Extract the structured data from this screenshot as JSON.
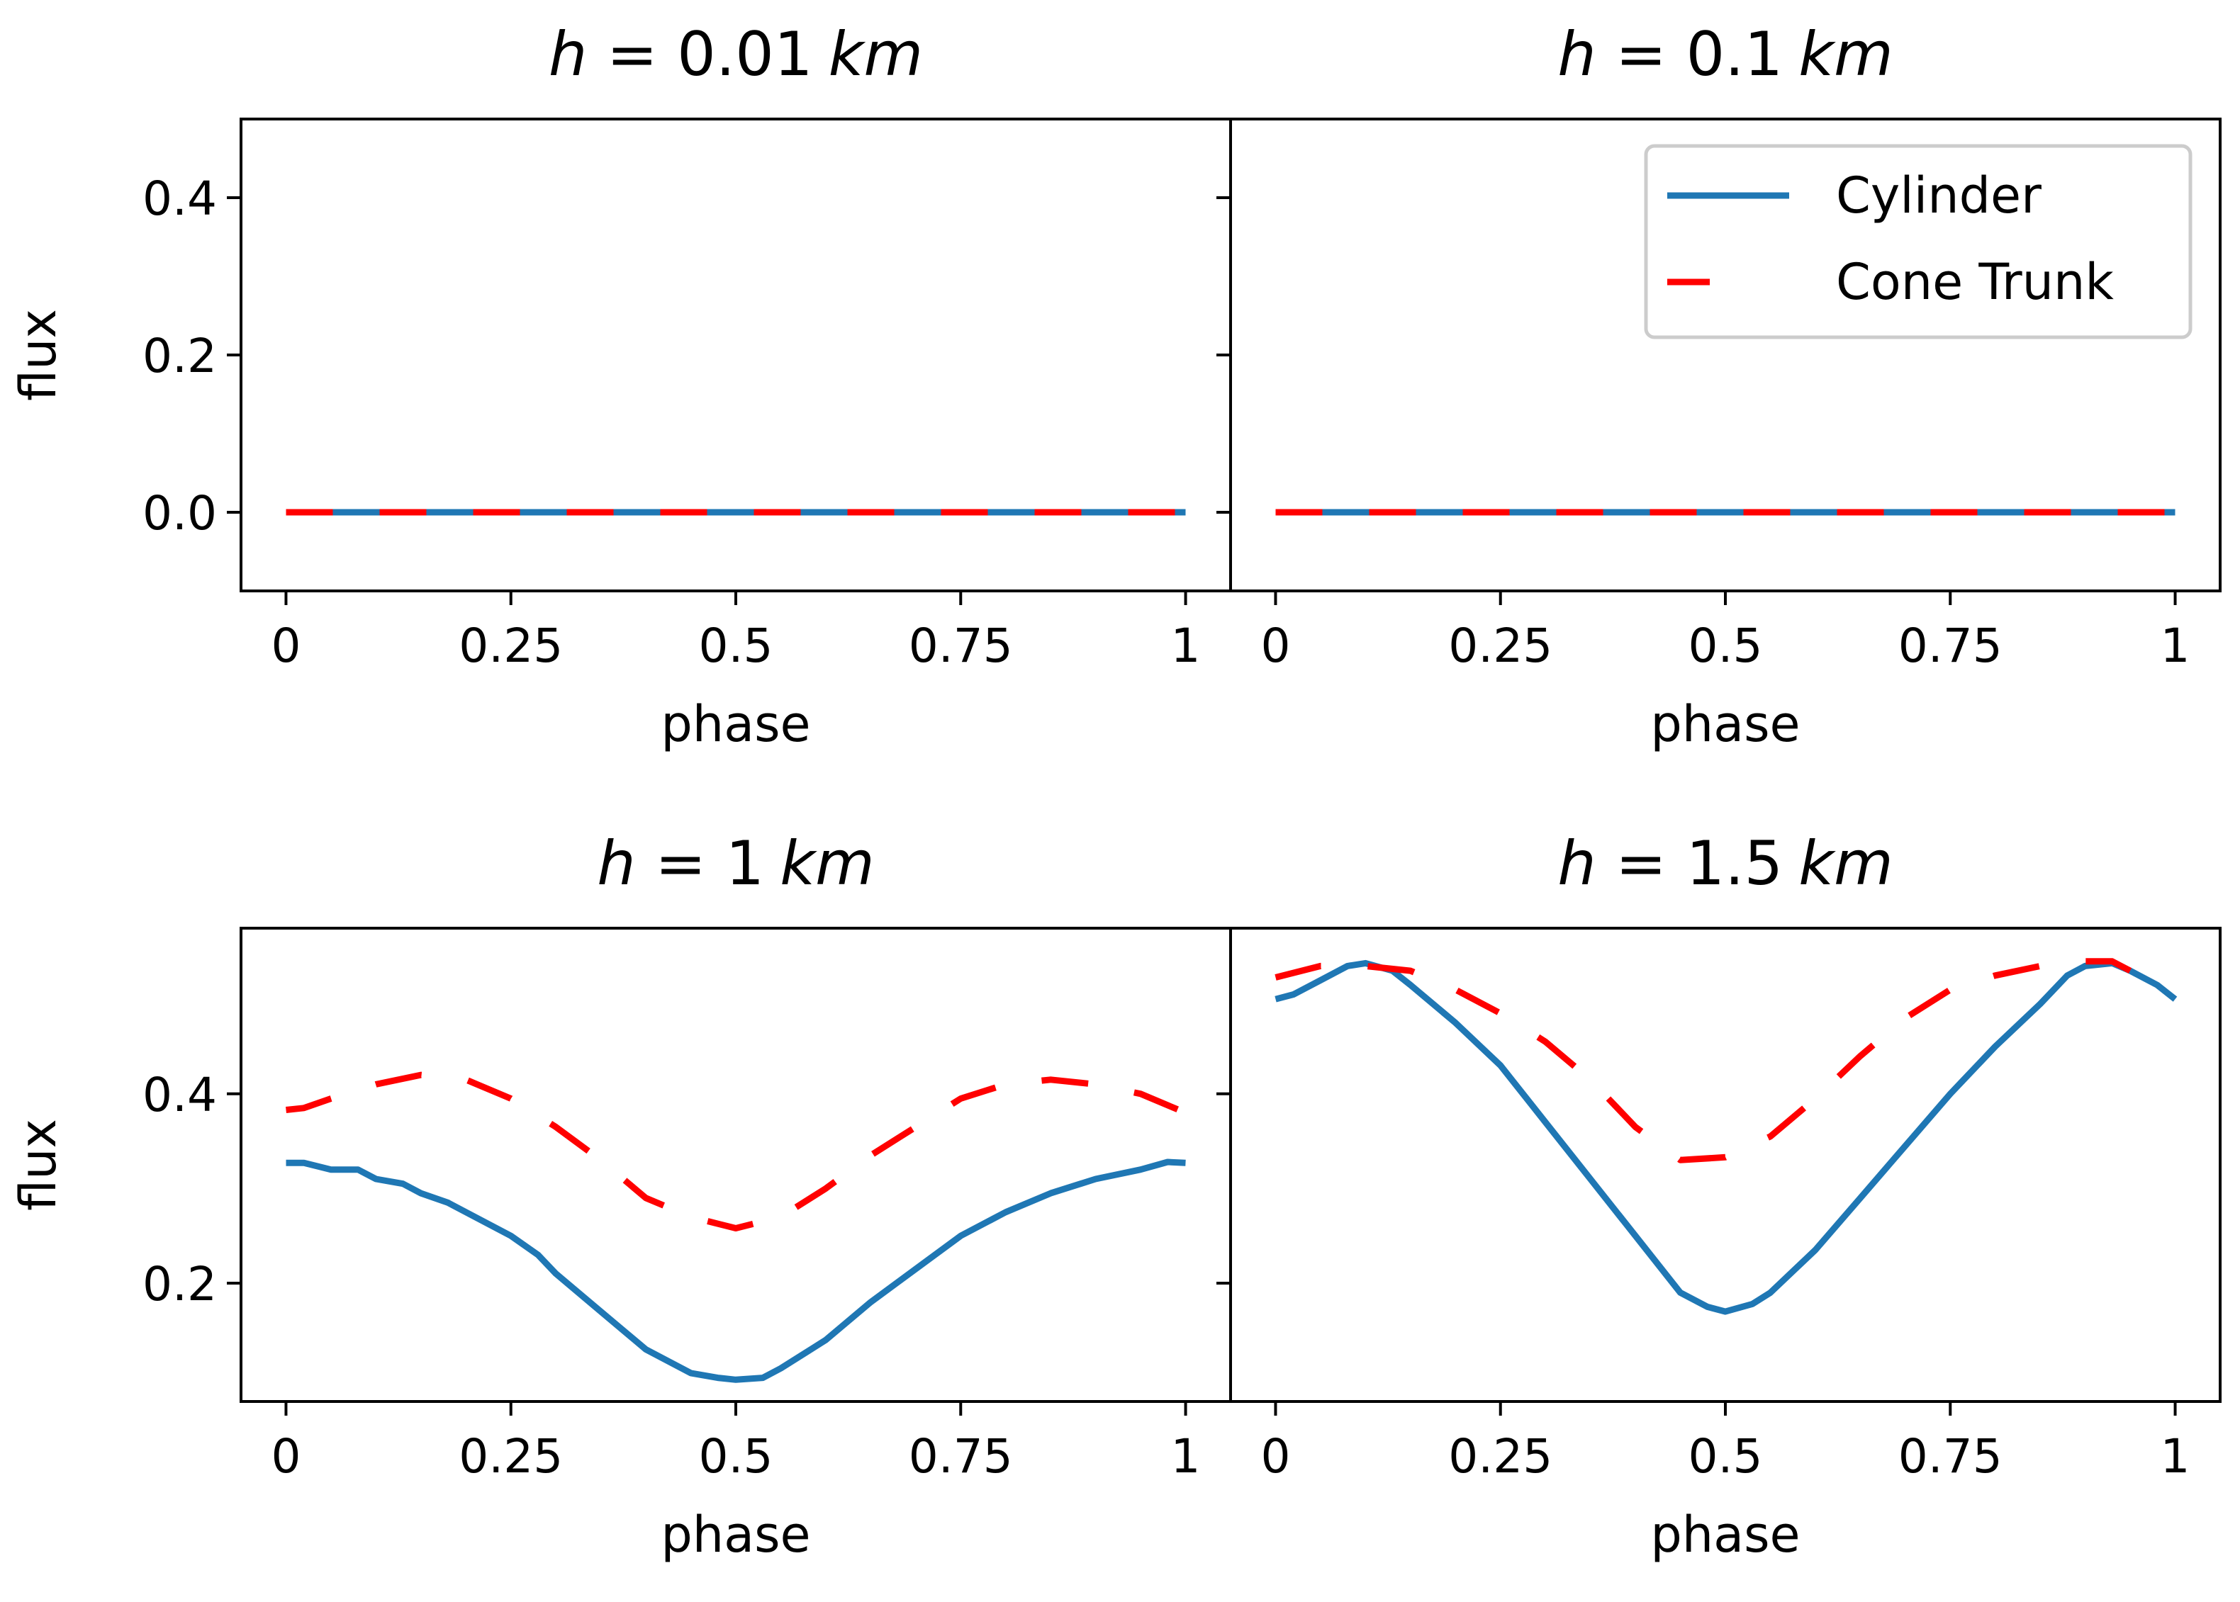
{
  "figure": {
    "legend": {
      "placement": "upper right of top-right panel",
      "entries": [
        {
          "label": "Cylinder",
          "color": "#1f77b4",
          "style": "solid"
        },
        {
          "label": "Cone Trunk",
          "color": "#ff0000",
          "style": "dashed"
        }
      ]
    }
  },
  "chart_data": [
    {
      "type": "line",
      "title_var": "h",
      "title_value": "0.01",
      "title_unit": "km",
      "xlabel": "phase",
      "ylabel": "flux",
      "xlim": [
        -0.05,
        1.05
      ],
      "ylim": [
        -0.1,
        0.5
      ],
      "xticks": [
        0,
        0.25,
        0.5,
        0.75,
        1
      ],
      "xtick_labels": [
        "0",
        "0.25",
        "0.5",
        "0.75",
        "1"
      ],
      "yticks": [
        0.0,
        0.2,
        0.4
      ],
      "ytick_labels": [
        "0.0",
        "0.2",
        "0.4"
      ],
      "show_yticklabels": true,
      "grid": false,
      "series": [
        {
          "name": "Cylinder",
          "color": "#1f77b4",
          "style": "solid",
          "x": [
            0,
            0.25,
            0.5,
            0.75,
            1
          ],
          "y": [
            0,
            0,
            0,
            0,
            0
          ]
        },
        {
          "name": "Cone Trunk",
          "color": "#ff0000",
          "style": "dashed",
          "x": [
            0,
            0.25,
            0.5,
            0.75,
            1
          ],
          "y": [
            0,
            0,
            0,
            0,
            0
          ]
        }
      ]
    },
    {
      "type": "line",
      "title_var": "h",
      "title_value": "0.1",
      "title_unit": "km",
      "xlabel": "phase",
      "ylabel": "",
      "xlim": [
        -0.05,
        1.05
      ],
      "ylim": [
        -0.1,
        0.5
      ],
      "xticks": [
        0,
        0.25,
        0.5,
        0.75,
        1
      ],
      "xtick_labels": [
        "0",
        "0.25",
        "0.5",
        "0.75",
        "1"
      ],
      "yticks": [
        0.0,
        0.2,
        0.4
      ],
      "ytick_labels": [],
      "show_yticklabels": false,
      "grid": false,
      "series": [
        {
          "name": "Cylinder",
          "color": "#1f77b4",
          "style": "solid",
          "x": [
            0,
            0.25,
            0.5,
            0.75,
            1
          ],
          "y": [
            0,
            0,
            0,
            0,
            0
          ]
        },
        {
          "name": "Cone Trunk",
          "color": "#ff0000",
          "style": "dashed",
          "x": [
            0,
            0.25,
            0.5,
            0.75,
            1
          ],
          "y": [
            0,
            0,
            0,
            0,
            0
          ]
        }
      ]
    },
    {
      "type": "line",
      "title_var": "h",
      "title_value": "1",
      "title_unit": "km",
      "xlabel": "phase",
      "ylabel": "flux",
      "xlim": [
        -0.05,
        1.05
      ],
      "ylim": [
        0.075,
        0.575
      ],
      "xticks": [
        0,
        0.25,
        0.5,
        0.75,
        1
      ],
      "xtick_labels": [
        "0",
        "0.25",
        "0.5",
        "0.75",
        "1"
      ],
      "yticks": [
        0.2,
        0.4
      ],
      "ytick_labels": [
        "0.2",
        "0.4"
      ],
      "show_yticklabels": true,
      "grid": false,
      "series": [
        {
          "name": "Cylinder",
          "color": "#1f77b4",
          "style": "solid",
          "x": [
            0,
            0.02,
            0.05,
            0.08,
            0.1,
            0.13,
            0.15,
            0.18,
            0.2,
            0.25,
            0.28,
            0.3,
            0.35,
            0.4,
            0.45,
            0.48,
            0.5,
            0.53,
            0.55,
            0.6,
            0.65,
            0.7,
            0.75,
            0.8,
            0.85,
            0.9,
            0.95,
            0.98,
            1
          ],
          "y": [
            0.327,
            0.327,
            0.32,
            0.32,
            0.31,
            0.305,
            0.295,
            0.285,
            0.275,
            0.25,
            0.23,
            0.21,
            0.17,
            0.13,
            0.105,
            0.1,
            0.098,
            0.1,
            0.11,
            0.14,
            0.18,
            0.215,
            0.25,
            0.275,
            0.295,
            0.31,
            0.32,
            0.328,
            0.327
          ]
        },
        {
          "name": "Cone Trunk",
          "color": "#ff0000",
          "style": "dashed",
          "x": [
            0,
            0.02,
            0.05,
            0.1,
            0.15,
            0.2,
            0.25,
            0.3,
            0.35,
            0.4,
            0.45,
            0.5,
            0.55,
            0.6,
            0.65,
            0.7,
            0.75,
            0.8,
            0.85,
            0.9,
            0.95,
            1
          ],
          "y": [
            0.383,
            0.385,
            0.395,
            0.41,
            0.42,
            0.415,
            0.395,
            0.365,
            0.33,
            0.29,
            0.27,
            0.258,
            0.27,
            0.3,
            0.335,
            0.365,
            0.395,
            0.41,
            0.415,
            0.41,
            0.4,
            0.38
          ]
        }
      ]
    },
    {
      "type": "line",
      "title_var": "h",
      "title_value": "1.5",
      "title_unit": "km",
      "xlabel": "phase",
      "ylabel": "",
      "xlim": [
        -0.05,
        1.05
      ],
      "ylim": [
        0.075,
        0.575
      ],
      "xticks": [
        0,
        0.25,
        0.5,
        0.75,
        1
      ],
      "xtick_labels": [
        "0",
        "0.25",
        "0.5",
        "0.75",
        "1"
      ],
      "yticks": [
        0.2,
        0.4
      ],
      "ytick_labels": [],
      "show_yticklabels": false,
      "grid": false,
      "series": [
        {
          "name": "Cylinder",
          "color": "#1f77b4",
          "style": "solid",
          "x": [
            0,
            0.02,
            0.05,
            0.08,
            0.1,
            0.13,
            0.15,
            0.2,
            0.25,
            0.3,
            0.35,
            0.4,
            0.45,
            0.48,
            0.5,
            0.53,
            0.55,
            0.6,
            0.65,
            0.7,
            0.75,
            0.8,
            0.85,
            0.88,
            0.9,
            0.93,
            0.95,
            0.98,
            1
          ],
          "y": [
            0.5,
            0.505,
            0.52,
            0.535,
            0.538,
            0.53,
            0.515,
            0.475,
            0.43,
            0.37,
            0.31,
            0.25,
            0.19,
            0.175,
            0.17,
            0.178,
            0.19,
            0.235,
            0.29,
            0.345,
            0.4,
            0.45,
            0.495,
            0.525,
            0.535,
            0.538,
            0.53,
            0.515,
            0.5
          ]
        },
        {
          "name": "Cone Trunk",
          "color": "#ff0000",
          "style": "dashed",
          "x": [
            0,
            0.05,
            0.1,
            0.15,
            0.2,
            0.25,
            0.3,
            0.35,
            0.4,
            0.45,
            0.5,
            0.55,
            0.6,
            0.65,
            0.7,
            0.75,
            0.8,
            0.85,
            0.9,
            0.93,
            0.95,
            1
          ],
          "y": [
            0.523,
            0.535,
            0.535,
            0.53,
            0.51,
            0.485,
            0.455,
            0.415,
            0.365,
            0.33,
            0.333,
            0.355,
            0.395,
            0.44,
            0.48,
            0.51,
            0.525,
            0.535,
            0.54,
            0.54,
            0.53,
            0.52
          ]
        }
      ]
    }
  ]
}
